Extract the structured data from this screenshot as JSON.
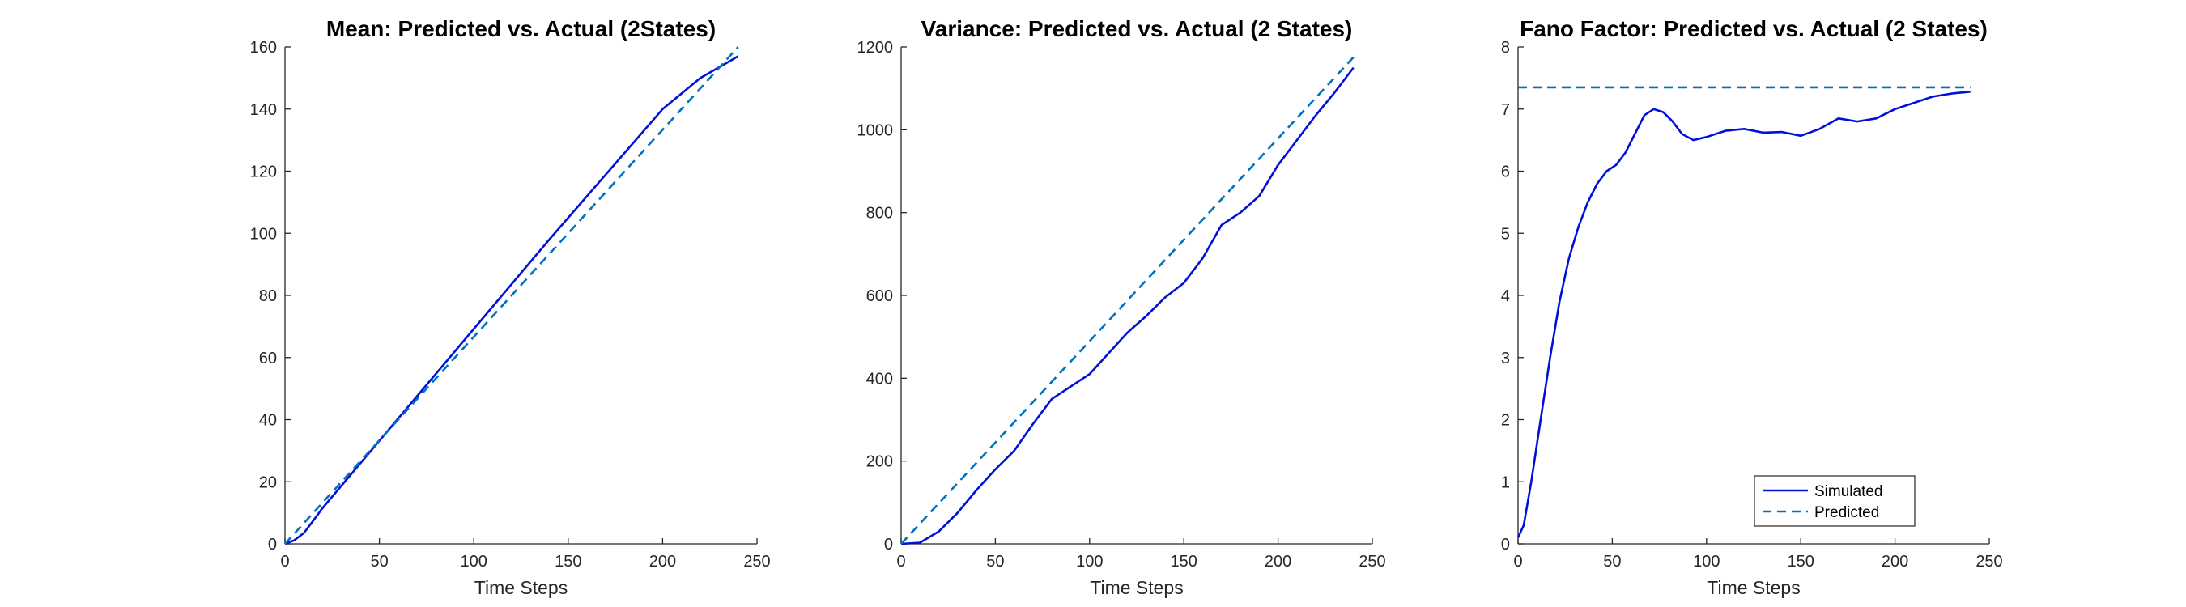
{
  "colors": {
    "simulated": "#0010D9",
    "predicted": "#0072BD",
    "axis": "#262626"
  },
  "chart_data": [
    {
      "type": "line",
      "title": "Mean: Predicted vs. Actual (2States)",
      "xlabel": "Time Steps",
      "ylabel": "",
      "xlim": [
        0,
        250
      ],
      "ylim": [
        0,
        160
      ],
      "xticks": [
        0,
        50,
        100,
        150,
        200,
        250
      ],
      "yticks": [
        0,
        20,
        40,
        60,
        80,
        100,
        120,
        140,
        160
      ],
      "grid": false,
      "series": [
        {
          "style": "solid",
          "color": "#0010D9",
          "points": [
            [
              0,
              0
            ],
            [
              5,
              1.2
            ],
            [
              10,
              3.5
            ],
            [
              15,
              7.5
            ],
            [
              20,
              11.6
            ],
            [
              40,
              26
            ],
            [
              60,
              40.4
            ],
            [
              80,
              54.8
            ],
            [
              100,
              69.2
            ],
            [
              120,
              83.6
            ],
            [
              140,
              98
            ],
            [
              160,
              112
            ],
            [
              180,
              126
            ],
            [
              200,
              140
            ],
            [
              220,
              150
            ],
            [
              240,
              157
            ]
          ]
        },
        {
          "style": "dashed",
          "color": "#0072BD",
          "points": [
            [
              0,
              0
            ],
            [
              240,
              160
            ]
          ]
        }
      ]
    },
    {
      "type": "line",
      "title": "Variance: Predicted vs. Actual (2 States)",
      "xlabel": "Time Steps",
      "ylabel": "",
      "xlim": [
        0,
        250
      ],
      "ylim": [
        0,
        1200
      ],
      "xticks": [
        0,
        50,
        100,
        150,
        200,
        250
      ],
      "yticks": [
        0,
        200,
        400,
        600,
        800,
        1000,
        1200
      ],
      "grid": false,
      "series": [
        {
          "style": "solid",
          "color": "#0010D9",
          "points": [
            [
              0,
              0
            ],
            [
              10,
              3
            ],
            [
              20,
              30
            ],
            [
              30,
              75
            ],
            [
              40,
              130
            ],
            [
              50,
              180
            ],
            [
              60,
              225
            ],
            [
              70,
              290
            ],
            [
              80,
              350
            ],
            [
              90,
              380
            ],
            [
              100,
              410
            ],
            [
              110,
              460
            ],
            [
              120,
              510
            ],
            [
              130,
              550
            ],
            [
              140,
              595
            ],
            [
              150,
              630
            ],
            [
              160,
              690
            ],
            [
              170,
              770
            ],
            [
              180,
              800
            ],
            [
              190,
              840
            ],
            [
              200,
              915
            ],
            [
              210,
              975
            ],
            [
              220,
              1035
            ],
            [
              230,
              1090
            ],
            [
              240,
              1150
            ]
          ]
        },
        {
          "style": "dashed",
          "color": "#0072BD",
          "points": [
            [
              0,
              0
            ],
            [
              240,
              1175
            ]
          ]
        }
      ]
    },
    {
      "type": "line",
      "title": "Fano Factor: Predicted vs. Actual (2 States)",
      "xlabel": "Time Steps",
      "ylabel": "",
      "xlim": [
        0,
        250
      ],
      "ylim": [
        0,
        8
      ],
      "xticks": [
        0,
        50,
        100,
        150,
        200,
        250
      ],
      "yticks": [
        0,
        1,
        2,
        3,
        4,
        5,
        6,
        7,
        8
      ],
      "grid": false,
      "legend_position": "bottom-right",
      "series": [
        {
          "name": "Simulated",
          "style": "solid",
          "color": "#0010D9",
          "points": [
            [
              0,
              0.1
            ],
            [
              3,
              0.3
            ],
            [
              7,
              1
            ],
            [
              12,
              2
            ],
            [
              17,
              3
            ],
            [
              22,
              3.9
            ],
            [
              27,
              4.6
            ],
            [
              32,
              5.1
            ],
            [
              37,
              5.5
            ],
            [
              42,
              5.8
            ],
            [
              47,
              6
            ],
            [
              52,
              6.1
            ],
            [
              57,
              6.3
            ],
            [
              62,
              6.6
            ],
            [
              67,
              6.9
            ],
            [
              72,
              7
            ],
            [
              77,
              6.95
            ],
            [
              82,
              6.8
            ],
            [
              87,
              6.6
            ],
            [
              93,
              6.5
            ],
            [
              100,
              6.55
            ],
            [
              110,
              6.65
            ],
            [
              120,
              6.68
            ],
            [
              130,
              6.62
            ],
            [
              140,
              6.63
            ],
            [
              150,
              6.57
            ],
            [
              160,
              6.68
            ],
            [
              170,
              6.85
            ],
            [
              180,
              6.8
            ],
            [
              190,
              6.85
            ],
            [
              200,
              7
            ],
            [
              210,
              7.1
            ],
            [
              220,
              7.2
            ],
            [
              230,
              7.25
            ],
            [
              240,
              7.28
            ]
          ]
        },
        {
          "name": "Predicted",
          "style": "dashed",
          "color": "#0072BD",
          "points": [
            [
              0,
              7.35
            ],
            [
              240,
              7.35
            ]
          ]
        }
      ]
    }
  ]
}
